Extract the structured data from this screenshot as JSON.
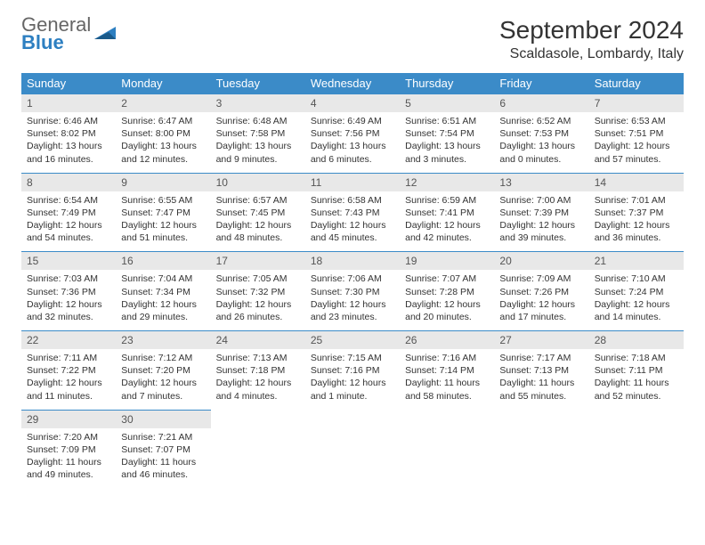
{
  "logo": {
    "text1": "General",
    "text2": "Blue",
    "shape_color": "#2d7fc1"
  },
  "header": {
    "month_title": "September 2024",
    "location": "Scaldasole, Lombardy, Italy"
  },
  "style": {
    "header_bg": "#3b8bc8",
    "header_text": "#ffffff",
    "daynum_bg": "#e8e8e8",
    "border_color": "#3b8bc8",
    "font_family": "Arial, Helvetica, sans-serif"
  },
  "day_names": [
    "Sunday",
    "Monday",
    "Tuesday",
    "Wednesday",
    "Thursday",
    "Friday",
    "Saturday"
  ],
  "weeks": [
    [
      {
        "n": "1",
        "sr": "6:46 AM",
        "ss": "8:02 PM",
        "dl": "13 hours and 16 minutes."
      },
      {
        "n": "2",
        "sr": "6:47 AM",
        "ss": "8:00 PM",
        "dl": "13 hours and 12 minutes."
      },
      {
        "n": "3",
        "sr": "6:48 AM",
        "ss": "7:58 PM",
        "dl": "13 hours and 9 minutes."
      },
      {
        "n": "4",
        "sr": "6:49 AM",
        "ss": "7:56 PM",
        "dl": "13 hours and 6 minutes."
      },
      {
        "n": "5",
        "sr": "6:51 AM",
        "ss": "7:54 PM",
        "dl": "13 hours and 3 minutes."
      },
      {
        "n": "6",
        "sr": "6:52 AM",
        "ss": "7:53 PM",
        "dl": "13 hours and 0 minutes."
      },
      {
        "n": "7",
        "sr": "6:53 AM",
        "ss": "7:51 PM",
        "dl": "12 hours and 57 minutes."
      }
    ],
    [
      {
        "n": "8",
        "sr": "6:54 AM",
        "ss": "7:49 PM",
        "dl": "12 hours and 54 minutes."
      },
      {
        "n": "9",
        "sr": "6:55 AM",
        "ss": "7:47 PM",
        "dl": "12 hours and 51 minutes."
      },
      {
        "n": "10",
        "sr": "6:57 AM",
        "ss": "7:45 PM",
        "dl": "12 hours and 48 minutes."
      },
      {
        "n": "11",
        "sr": "6:58 AM",
        "ss": "7:43 PM",
        "dl": "12 hours and 45 minutes."
      },
      {
        "n": "12",
        "sr": "6:59 AM",
        "ss": "7:41 PM",
        "dl": "12 hours and 42 minutes."
      },
      {
        "n": "13",
        "sr": "7:00 AM",
        "ss": "7:39 PM",
        "dl": "12 hours and 39 minutes."
      },
      {
        "n": "14",
        "sr": "7:01 AM",
        "ss": "7:37 PM",
        "dl": "12 hours and 36 minutes."
      }
    ],
    [
      {
        "n": "15",
        "sr": "7:03 AM",
        "ss": "7:36 PM",
        "dl": "12 hours and 32 minutes."
      },
      {
        "n": "16",
        "sr": "7:04 AM",
        "ss": "7:34 PM",
        "dl": "12 hours and 29 minutes."
      },
      {
        "n": "17",
        "sr": "7:05 AM",
        "ss": "7:32 PM",
        "dl": "12 hours and 26 minutes."
      },
      {
        "n": "18",
        "sr": "7:06 AM",
        "ss": "7:30 PM",
        "dl": "12 hours and 23 minutes."
      },
      {
        "n": "19",
        "sr": "7:07 AM",
        "ss": "7:28 PM",
        "dl": "12 hours and 20 minutes."
      },
      {
        "n": "20",
        "sr": "7:09 AM",
        "ss": "7:26 PM",
        "dl": "12 hours and 17 minutes."
      },
      {
        "n": "21",
        "sr": "7:10 AM",
        "ss": "7:24 PM",
        "dl": "12 hours and 14 minutes."
      }
    ],
    [
      {
        "n": "22",
        "sr": "7:11 AM",
        "ss": "7:22 PM",
        "dl": "12 hours and 11 minutes."
      },
      {
        "n": "23",
        "sr": "7:12 AM",
        "ss": "7:20 PM",
        "dl": "12 hours and 7 minutes."
      },
      {
        "n": "24",
        "sr": "7:13 AM",
        "ss": "7:18 PM",
        "dl": "12 hours and 4 minutes."
      },
      {
        "n": "25",
        "sr": "7:15 AM",
        "ss": "7:16 PM",
        "dl": "12 hours and 1 minute."
      },
      {
        "n": "26",
        "sr": "7:16 AM",
        "ss": "7:14 PM",
        "dl": "11 hours and 58 minutes."
      },
      {
        "n": "27",
        "sr": "7:17 AM",
        "ss": "7:13 PM",
        "dl": "11 hours and 55 minutes."
      },
      {
        "n": "28",
        "sr": "7:18 AM",
        "ss": "7:11 PM",
        "dl": "11 hours and 52 minutes."
      }
    ],
    [
      {
        "n": "29",
        "sr": "7:20 AM",
        "ss": "7:09 PM",
        "dl": "11 hours and 49 minutes."
      },
      {
        "n": "30",
        "sr": "7:21 AM",
        "ss": "7:07 PM",
        "dl": "11 hours and 46 minutes."
      },
      null,
      null,
      null,
      null,
      null
    ]
  ],
  "labels": {
    "sunrise": "Sunrise:",
    "sunset": "Sunset:",
    "daylight": "Daylight:"
  }
}
